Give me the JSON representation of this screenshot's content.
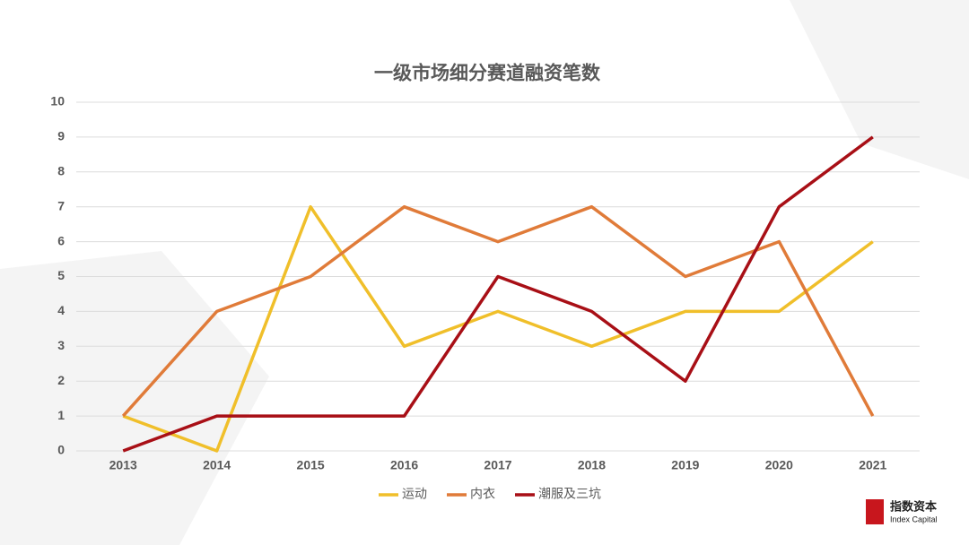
{
  "chart_data": {
    "type": "line",
    "title": "一级市场细分赛道融资笔数",
    "categories": [
      "2013",
      "2014",
      "2015",
      "2016",
      "2017",
      "2018",
      "2019",
      "2020",
      "2021"
    ],
    "series": [
      {
        "name": "运动",
        "color": "#f0bf2a",
        "values": [
          1,
          0,
          7,
          3,
          4,
          3,
          4,
          4,
          6
        ]
      },
      {
        "name": "内衣",
        "color": "#e07b39",
        "values": [
          1,
          4,
          5,
          7,
          6,
          7,
          5,
          6,
          1
        ]
      },
      {
        "name": "潮服及三坑",
        "color": "#a80f16",
        "values": [
          0,
          1,
          1,
          1,
          5,
          4,
          2,
          7,
          9
        ]
      }
    ],
    "ylim": [
      0,
      10
    ],
    "yticks": [
      0,
      1,
      2,
      3,
      4,
      5,
      6,
      7,
      8,
      9,
      10
    ],
    "grid": true,
    "legend": "bottom"
  },
  "logo": {
    "name": "指数资本",
    "subtitle": "Index Capital"
  }
}
